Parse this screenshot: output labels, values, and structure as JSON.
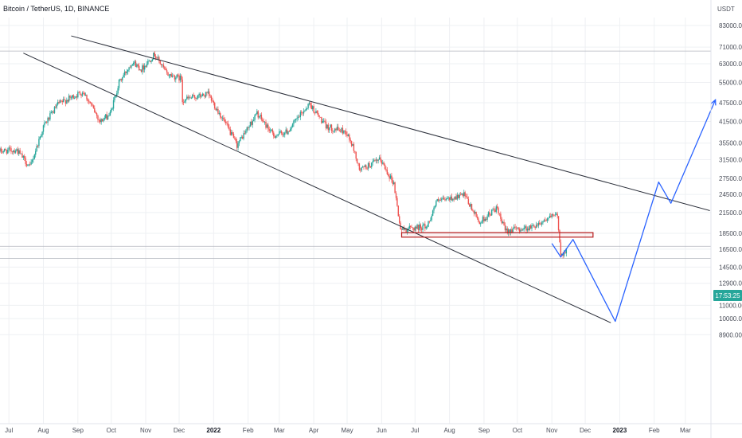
{
  "header": {
    "title": "Bitcoin / TetherUS, 1D, BINANCE"
  },
  "price_axis": {
    "currency": "USDT"
  },
  "badge": {
    "text": "17:53:25",
    "color": "#26a69a"
  },
  "colors": {
    "up": "#26a69a",
    "down": "#ef5350",
    "trendline": "#2a2e39",
    "projection": "#2962ff",
    "zone": "#b71c1c",
    "grid": "#eef0f3"
  },
  "chart_data": {
    "type": "candlestick",
    "title": "Bitcoin / TetherUS, 1D, BINANCE",
    "y_axis": {
      "scale": "log",
      "range": [
        8300,
        90000
      ],
      "ticks": [
        "83000.00",
        "71000.00",
        "63000.00",
        "55000.00",
        "47500.00",
        "41500.00",
        "35500.00",
        "31500.00",
        "27500.00",
        "24500.00",
        "21500.00",
        "18500.00",
        "16500.00",
        "14500.00",
        "12900.00",
        "11000.00",
        "10000.00",
        "8900.00"
      ],
      "tick_values": [
        83000,
        71000,
        63000,
        55000,
        47500,
        41500,
        35500,
        31500,
        27500,
        24500,
        21500,
        18500,
        16500,
        14500,
        12900,
        11000,
        10000,
        8900
      ]
    },
    "x_axis": {
      "labels": [
        "Jul",
        "Aug",
        "Sep",
        "Oct",
        "Nov",
        "Dec",
        "2022",
        "Feb",
        "Mar",
        "Apr",
        "May",
        "Jun",
        "Jul",
        "Aug",
        "Sep",
        "Oct",
        "Nov",
        "Dec",
        "2023",
        "Feb",
        "Mar"
      ],
      "label_dates": [
        "2021-07-01",
        "2021-08-01",
        "2021-09-01",
        "2021-10-01",
        "2021-11-01",
        "2021-12-01",
        "2022-01-01",
        "2022-02-01",
        "2022-03-01",
        "2022-04-01",
        "2022-05-01",
        "2022-06-01",
        "2022-07-01",
        "2022-08-01",
        "2022-09-01",
        "2022-10-01",
        "2022-11-01",
        "2022-12-01",
        "2023-01-01",
        "2023-02-01",
        "2023-03-01"
      ],
      "range": [
        "2021-06-23",
        "2023-03-24"
      ]
    },
    "grid": true,
    "ohlc_anchors": [
      {
        "date": "2021-06-23",
        "close": 33500
      },
      {
        "date": "2021-07-08",
        "close": 33800
      },
      {
        "date": "2021-07-20",
        "close": 29800
      },
      {
        "date": "2021-08-01",
        "close": 40000
      },
      {
        "date": "2021-08-14",
        "close": 47000
      },
      {
        "date": "2021-09-06",
        "close": 51500
      },
      {
        "date": "2021-09-21",
        "close": 41500
      },
      {
        "date": "2021-09-30",
        "close": 43800
      },
      {
        "date": "2021-10-08",
        "close": 55000
      },
      {
        "date": "2021-10-20",
        "close": 64000
      },
      {
        "date": "2021-10-28",
        "close": 60500
      },
      {
        "date": "2021-11-09",
        "close": 67500
      },
      {
        "date": "2021-11-20",
        "close": 58500
      },
      {
        "date": "2021-12-03",
        "close": 56500
      },
      {
        "date": "2021-12-04",
        "close": 48500
      },
      {
        "date": "2021-12-27",
        "close": 50500
      },
      {
        "date": "2022-01-10",
        "close": 41800
      },
      {
        "date": "2022-01-22",
        "close": 35000
      },
      {
        "date": "2022-02-09",
        "close": 44000
      },
      {
        "date": "2022-02-24",
        "close": 37500
      },
      {
        "date": "2022-03-08",
        "close": 38500
      },
      {
        "date": "2022-03-28",
        "close": 47200
      },
      {
        "date": "2022-04-12",
        "close": 40000
      },
      {
        "date": "2022-04-30",
        "close": 38500
      },
      {
        "date": "2022-05-07",
        "close": 34000
      },
      {
        "date": "2022-05-12",
        "close": 29200
      },
      {
        "date": "2022-05-31",
        "close": 31500
      },
      {
        "date": "2022-06-12",
        "close": 26500
      },
      {
        "date": "2022-06-18",
        "close": 19000
      },
      {
        "date": "2022-07-12",
        "close": 19500
      },
      {
        "date": "2022-07-20",
        "close": 23200
      },
      {
        "date": "2022-08-14",
        "close": 24400
      },
      {
        "date": "2022-08-28",
        "close": 20000
      },
      {
        "date": "2022-09-12",
        "close": 22200
      },
      {
        "date": "2022-09-20",
        "close": 18900
      },
      {
        "date": "2022-10-13",
        "close": 19300
      },
      {
        "date": "2022-10-28",
        "close": 20600
      },
      {
        "date": "2022-11-06",
        "close": 21100
      },
      {
        "date": "2022-11-09",
        "close": 15800
      },
      {
        "date": "2022-11-14",
        "close": 16500
      }
    ],
    "annotations": {
      "trendlines": [
        {
          "name": "upper-resistance",
          "points": [
            {
              "date": "2021-08-26",
              "price": 77000
            },
            {
              "date": "2023-03-23",
              "price": 21800
            }
          ]
        },
        {
          "name": "lower-support",
          "points": [
            {
              "date": "2021-07-14",
              "price": 68000
            },
            {
              "date": "2022-12-24",
              "price": 9700
            }
          ]
        }
      ],
      "zone": {
        "from": "2022-06-19",
        "to": "2022-12-08",
        "low": 18000,
        "high": 18600
      },
      "horizontal_lines": [
        69000,
        16850,
        15450
      ],
      "projection": [
        {
          "date": "2022-11-01",
          "price": 17200
        },
        {
          "date": "2022-11-09",
          "price": 15600
        },
        {
          "date": "2022-11-20",
          "price": 17700
        },
        {
          "date": "2022-12-28",
          "price": 9800
        },
        {
          "date": "2023-02-05",
          "price": 26800
        },
        {
          "date": "2023-02-16",
          "price": 23000
        },
        {
          "date": "2023-03-28",
          "price": 48500
        }
      ]
    }
  }
}
